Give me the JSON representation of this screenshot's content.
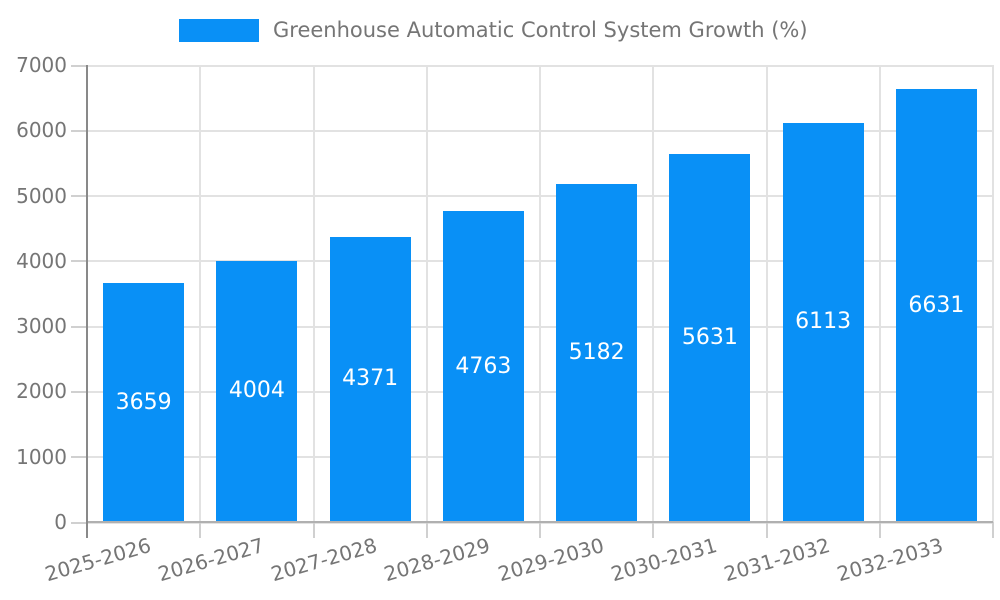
{
  "chart_data": {
    "type": "bar",
    "title": "Greenhouse Automatic Control System Growth (%)",
    "categories": [
      "2025-2026",
      "2026-2027",
      "2027-2028",
      "2028-2029",
      "2029-2030",
      "2030-2031",
      "2031-2032",
      "2032-2033"
    ],
    "values": [
      3659,
      4004,
      4371,
      4763,
      5182,
      5631,
      6113,
      6631
    ],
    "xlabel": "",
    "ylabel": "",
    "ylim": [
      0,
      7000
    ],
    "yticks": [
      0,
      1000,
      2000,
      3000,
      4000,
      5000,
      6000,
      7000
    ],
    "grid": true,
    "legend_position": "top",
    "value_labels_inside_bars": true,
    "colors": {
      "bar": "#0990f6",
      "bar_value_text": "#ffffff",
      "axis_text": "#757575",
      "grid_line": "#e2e2e2",
      "x_axis_line": "#b0b0b0",
      "y_axis_line": "#898989",
      "tick_mark": "#d0d0d0",
      "background": "#ffffff"
    }
  }
}
